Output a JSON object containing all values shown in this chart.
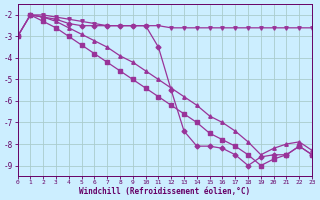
{
  "bg_color": "#cceeff",
  "grid_color": "#aacccc",
  "line_color": "#993399",
  "xlabel": "Windchill (Refroidissement éolien,°C)",
  "xlabel_color": "#660066",
  "tick_color": "#660066",
  "xlim": [
    0,
    23
  ],
  "ylim": [
    -9.5,
    -1.5
  ],
  "yticks": [
    -9,
    -8,
    -7,
    -6,
    -5,
    -4,
    -3,
    -2
  ],
  "xticks": [
    0,
    1,
    2,
    3,
    4,
    5,
    6,
    7,
    8,
    9,
    10,
    11,
    12,
    13,
    14,
    15,
    16,
    17,
    18,
    19,
    20,
    21,
    22,
    23
  ],
  "series": [
    {
      "x": [
        0,
        1,
        2,
        3,
        4,
        5,
        6,
        7,
        8,
        9,
        10,
        11,
        12,
        13,
        14,
        15,
        16,
        17,
        18,
        19,
        20,
        21,
        22,
        23
      ],
      "y": [
        -3.0,
        -2.0,
        -2.1,
        -2.2,
        -2.4,
        -2.5,
        -2.5,
        -2.5,
        -2.5,
        -2.5,
        -2.5,
        -3.5,
        -5.5,
        -7.4,
        -8.1,
        -8.1,
        -8.2,
        -8.5,
        -9.0,
        -8.6,
        -8.5,
        -8.5,
        -8.1,
        -8.5
      ],
      "marker": "D",
      "markersize": 2.5,
      "linewidth": 0.9
    },
    {
      "x": [
        0,
        1,
        2,
        3,
        4,
        5,
        6,
        7,
        8,
        9,
        10,
        11,
        12,
        13,
        14,
        15,
        16,
        17,
        18,
        19,
        20,
        21,
        22,
        23
      ],
      "y": [
        -3.0,
        -2.0,
        -2.3,
        -2.6,
        -3.0,
        -3.4,
        -3.8,
        -4.2,
        -4.6,
        -5.0,
        -5.4,
        -5.8,
        -6.2,
        -6.6,
        -7.0,
        -7.5,
        -7.8,
        -8.1,
        -8.5,
        -9.0,
        -8.7,
        -8.5,
        -8.1,
        -8.5
      ],
      "marker": "s",
      "markersize": 2.5,
      "linewidth": 0.9
    },
    {
      "x": [
        0,
        1,
        2,
        3,
        4,
        5,
        6,
        7,
        8,
        9,
        10,
        11,
        12,
        13,
        14,
        15,
        16,
        17,
        18,
        19,
        20,
        21,
        22,
        23
      ],
      "y": [
        -3.0,
        -2.0,
        -2.1,
        -2.3,
        -2.6,
        -2.9,
        -3.2,
        -3.5,
        -3.9,
        -4.2,
        -4.6,
        -5.0,
        -5.4,
        -5.8,
        -6.2,
        -6.7,
        -7.0,
        -7.4,
        -7.9,
        -8.5,
        -8.2,
        -8.0,
        -7.9,
        -8.3
      ],
      "marker": "^",
      "markersize": 2.5,
      "linewidth": 0.9
    },
    {
      "x": [
        1,
        2,
        3,
        4,
        5,
        6,
        7,
        8,
        9,
        10,
        11,
        12,
        13,
        14,
        15,
        16,
        17,
        18,
        19,
        20,
        21,
        22,
        23
      ],
      "y": [
        -2.0,
        -2.0,
        -2.1,
        -2.2,
        -2.3,
        -2.4,
        -2.5,
        -2.5,
        -2.5,
        -2.5,
        -2.5,
        -2.6,
        -2.6,
        -2.6,
        -2.6,
        -2.6,
        -2.6,
        -2.6,
        -2.6,
        -2.6,
        -2.6,
        -2.6,
        -2.6
      ],
      "marker": "v",
      "markersize": 2.5,
      "linewidth": 0.9
    }
  ]
}
